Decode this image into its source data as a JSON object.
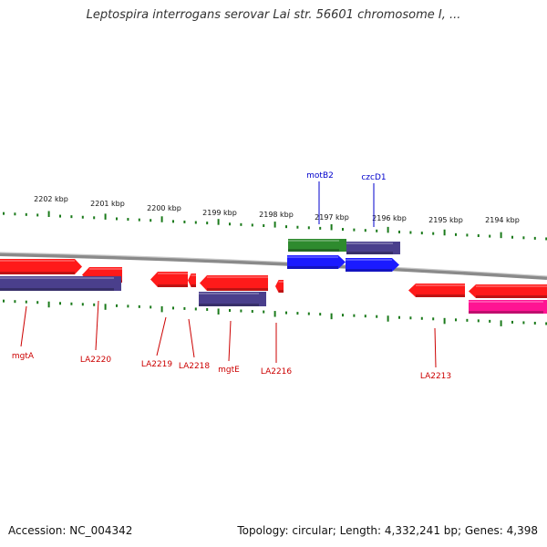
{
  "title": "Leptospira interrogans serovar Lai str. 56601 chromosome I, ...",
  "colors": {
    "red_gene": "#ff1a1a",
    "purple_gene": "#4a3f8c",
    "blue_gene": "#1a1aff",
    "green_gene": "#2e8b2e",
    "pink_gene": "#ff1493",
    "tick_green": "#1a7a1a",
    "backbone": "#8a8a8a",
    "label_red": "#cc0000",
    "label_blue": "#0000cc"
  },
  "scale_labels": [
    "2202 kbp",
    "2201 kbp",
    "2200 kbp",
    "2199 kbp",
    "2198 kbp",
    "2197 kbp",
    "2196 kbp",
    "2195 kbp",
    "2194 kbp"
  ],
  "genes_top": [
    {
      "label": "motB2",
      "color": "blue_gene"
    },
    {
      "label": "czcD1",
      "color": "blue_gene"
    }
  ],
  "genes_bottom": [
    {
      "label": "mgtA"
    },
    {
      "label": "LA2220"
    },
    {
      "label": "LA2219"
    },
    {
      "label": "LA2218"
    },
    {
      "label": "mgtE"
    },
    {
      "label": "LA2216"
    },
    {
      "label": "LA2213"
    }
  ],
  "footer": {
    "accession": "Accession: NC_004342",
    "summary": "Topology: circular; Length: 4,332,241 bp; Genes: 4,398"
  }
}
